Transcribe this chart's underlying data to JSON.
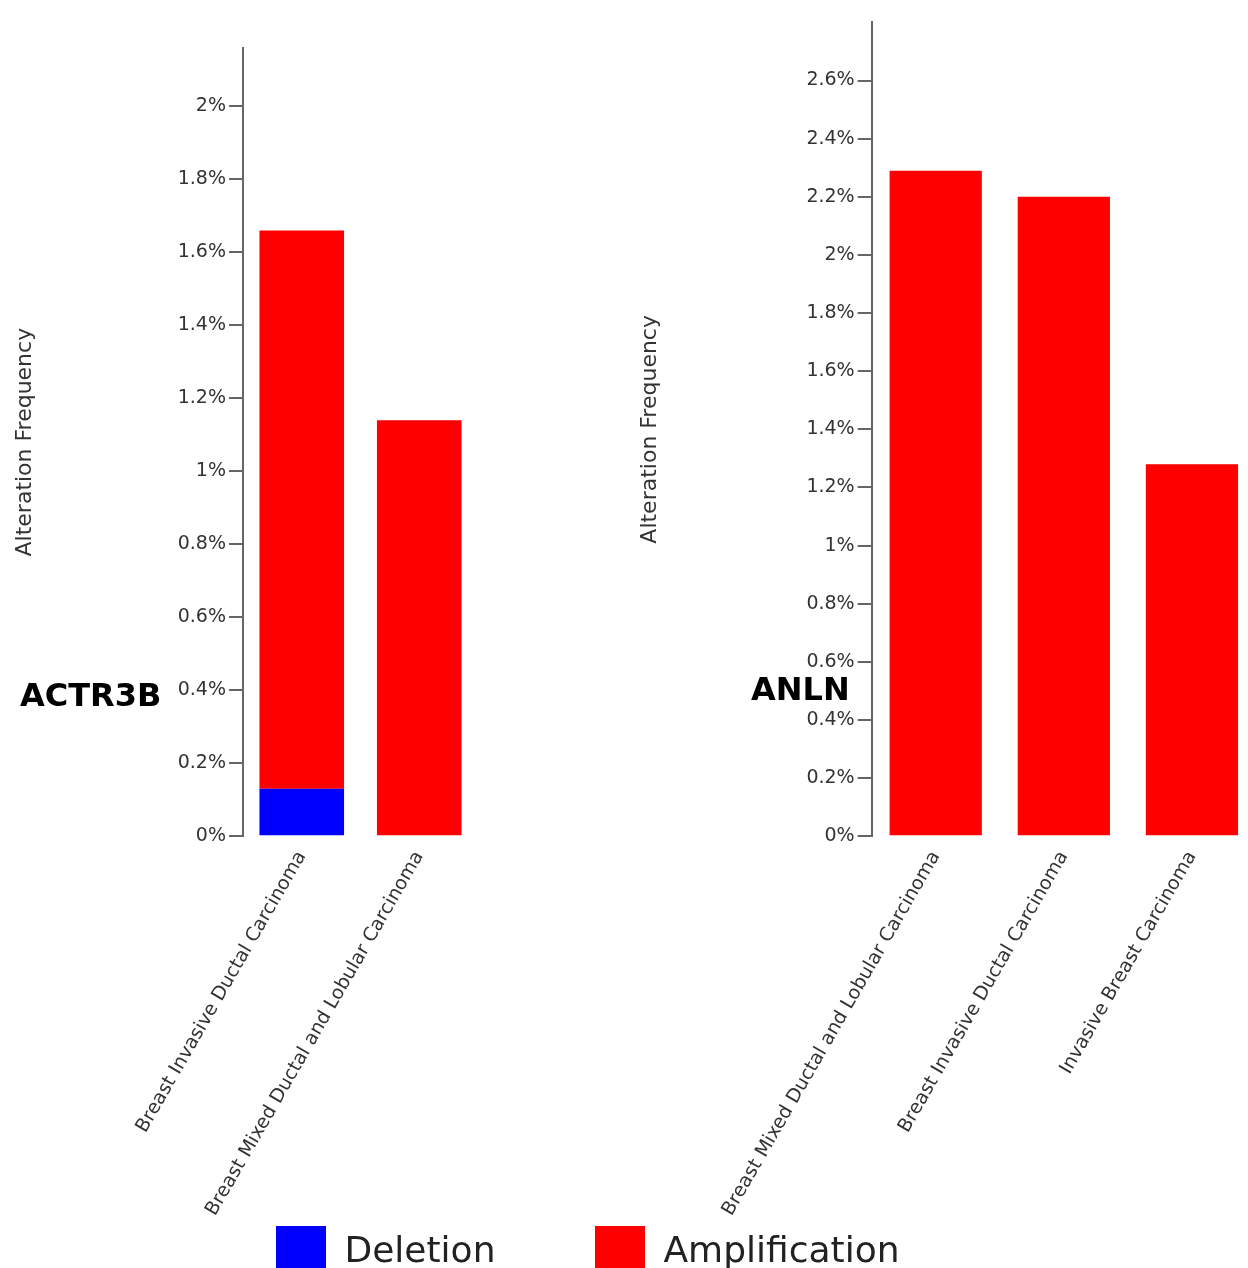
{
  "chart_data": [
    {
      "type": "bar",
      "title": "ACTR3B",
      "ylabel": "Alteration Frequency",
      "categories": [
        "Breast Invasive Ductal Carcinoma",
        "Breast Mixed Ductal and Lobular Carcinoma"
      ],
      "stacked": true,
      "legend": "bottom",
      "grid": false,
      "series": [
        {
          "name": "Deletion",
          "color": "#0000ff",
          "values": [
            0.13,
            0
          ]
        },
        {
          "name": "Amplification",
          "color": "#ff0000",
          "values": [
            1.53,
            1.14
          ]
        }
      ],
      "ylim": [
        0,
        2.16
      ],
      "yticks": [
        {
          "value": 0,
          "label": "0%"
        },
        {
          "value": 0.2,
          "label": "0.2%"
        },
        {
          "value": 0.4,
          "label": "0.4%"
        },
        {
          "value": 0.6,
          "label": "0.6%"
        },
        {
          "value": 0.8,
          "label": "0.8%"
        },
        {
          "value": 1,
          "label": "1%"
        },
        {
          "value": 1.2,
          "label": "1.2%"
        },
        {
          "value": 1.4,
          "label": "1.4%"
        },
        {
          "value": 1.6,
          "label": "1.6%"
        },
        {
          "value": 1.8,
          "label": "1.8%"
        },
        {
          "value": 2,
          "label": "2%"
        }
      ]
    },
    {
      "type": "bar",
      "title": "ANLN",
      "ylabel": "Alteration Frequency",
      "categories": [
        "Breast Mixed Ductal and Lobular Carcinoma",
        "Breast Invasive Ductal Carcinoma",
        "Invasive Breast Carcinoma"
      ],
      "stacked": true,
      "grid": false,
      "series": [
        {
          "color": "#ff0000",
          "values": [
            2.29,
            2.2,
            1.28
          ]
        }
      ],
      "ylim": [
        0,
        2.8
      ],
      "yticks": [
        {
          "value": 0,
          "label": "0%"
        },
        {
          "value": 0.2,
          "label": "0.2%"
        },
        {
          "value": 0.4,
          "label": "0.4%"
        },
        {
          "value": 0.6,
          "label": "0.6%"
        },
        {
          "value": 0.8,
          "label": "0.8%"
        },
        {
          "value": 1,
          "label": "1%"
        },
        {
          "value": 1.2,
          "label": "1.2%"
        },
        {
          "value": 1.4,
          "label": "1.4%"
        },
        {
          "value": 1.6,
          "label": "1.6%"
        },
        {
          "value": 1.8,
          "label": "1.8%"
        },
        {
          "value": 2,
          "label": "2%"
        },
        {
          "value": 2.2,
          "label": "2.2%"
        },
        {
          "value": 2.4,
          "label": "2.4%"
        },
        {
          "value": 2.6,
          "label": "2.6%"
        }
      ]
    }
  ]
}
